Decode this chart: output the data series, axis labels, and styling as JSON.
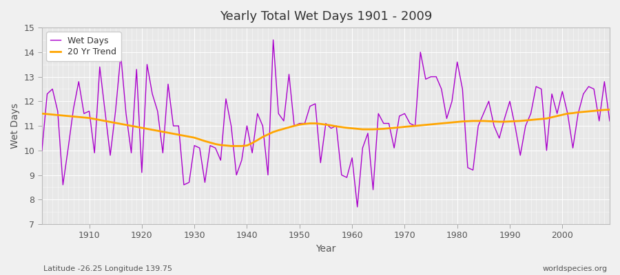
{
  "title": "Yearly Total Wet Days 1901 - 2009",
  "xlabel": "Year",
  "ylabel": "Wet Days",
  "xlim": [
    1901,
    2009
  ],
  "ylim": [
    7,
    15
  ],
  "yticks": [
    7,
    8,
    9,
    10,
    11,
    12,
    13,
    14,
    15
  ],
  "xticks": [
    1910,
    1920,
    1930,
    1940,
    1950,
    1960,
    1970,
    1980,
    1990,
    2000
  ],
  "wet_days_color": "#AA00CC",
  "trend_color": "#FFA500",
  "fig_bg_color": "#F0F0F0",
  "plot_bg_color": "#E8E8E8",
  "grid_color": "#FFFFFF",
  "text_color": "#555555",
  "bottom_left_text": "Latitude -26.25 Longitude 139.75",
  "bottom_right_text": "worldspecies.org",
  "years": [
    1901,
    1902,
    1903,
    1904,
    1905,
    1906,
    1907,
    1908,
    1909,
    1910,
    1911,
    1912,
    1913,
    1914,
    1915,
    1916,
    1917,
    1918,
    1919,
    1920,
    1921,
    1922,
    1923,
    1924,
    1925,
    1926,
    1927,
    1928,
    1929,
    1930,
    1931,
    1932,
    1933,
    1934,
    1935,
    1936,
    1937,
    1938,
    1939,
    1940,
    1941,
    1942,
    1943,
    1944,
    1945,
    1946,
    1947,
    1948,
    1949,
    1950,
    1951,
    1952,
    1953,
    1954,
    1955,
    1956,
    1957,
    1958,
    1959,
    1960,
    1961,
    1962,
    1963,
    1964,
    1965,
    1966,
    1967,
    1968,
    1969,
    1970,
    1971,
    1972,
    1973,
    1974,
    1975,
    1976,
    1977,
    1978,
    1979,
    1980,
    1981,
    1982,
    1983,
    1984,
    1985,
    1986,
    1987,
    1988,
    1989,
    1990,
    1991,
    1992,
    1993,
    1994,
    1995,
    1996,
    1997,
    1998,
    1999,
    2000,
    2001,
    2002,
    2003,
    2004,
    2005,
    2006,
    2007,
    2008,
    2009
  ],
  "wet_days": [
    10.0,
    12.3,
    12.5,
    11.6,
    8.6,
    10.1,
    11.7,
    12.8,
    11.5,
    11.6,
    9.9,
    13.4,
    11.6,
    9.8,
    11.6,
    13.9,
    11.5,
    9.9,
    13.3,
    9.1,
    13.5,
    12.3,
    11.6,
    9.9,
    12.7,
    11.0,
    11.0,
    8.6,
    8.7,
    10.2,
    10.1,
    8.7,
    10.2,
    10.1,
    9.6,
    12.1,
    11.0,
    9.0,
    9.6,
    11.0,
    9.9,
    11.5,
    11.0,
    9.0,
    14.5,
    11.5,
    11.2,
    13.1,
    11.0,
    11.1,
    11.1,
    11.8,
    11.9,
    9.5,
    11.1,
    10.9,
    11.0,
    9.0,
    8.9,
    9.7,
    7.7,
    10.1,
    10.7,
    8.4,
    11.5,
    11.1,
    11.1,
    10.1,
    11.4,
    11.5,
    11.1,
    11.0,
    14.0,
    12.9,
    13.0,
    13.0,
    12.5,
    11.3,
    12.0,
    13.6,
    12.5,
    9.3,
    9.2,
    11.0,
    11.5,
    12.0,
    11.0,
    10.5,
    11.3,
    12.0,
    11.0,
    9.8,
    11.0,
    11.5,
    12.6,
    12.5,
    10.0,
    12.3,
    11.5,
    12.4,
    11.5,
    10.1,
    11.5,
    12.3,
    12.6,
    12.5,
    11.2,
    12.8,
    11.2
  ],
  "trend_vals": [
    11.5,
    11.48,
    11.46,
    11.44,
    11.42,
    11.4,
    11.38,
    11.36,
    11.34,
    11.32,
    11.28,
    11.24,
    11.2,
    11.16,
    11.12,
    11.08,
    11.04,
    11.0,
    10.96,
    10.92,
    10.88,
    10.84,
    10.8,
    10.76,
    10.72,
    10.68,
    10.64,
    10.6,
    10.56,
    10.52,
    10.45,
    10.38,
    10.32,
    10.26,
    10.22,
    10.2,
    10.18,
    10.18,
    10.18,
    10.2,
    10.3,
    10.42,
    10.55,
    10.65,
    10.75,
    10.82,
    10.88,
    10.94,
    11.0,
    11.05,
    11.08,
    11.1,
    11.1,
    11.08,
    11.05,
    11.02,
    10.98,
    10.95,
    10.92,
    10.9,
    10.88,
    10.86,
    10.86,
    10.86,
    10.87,
    10.88,
    10.9,
    10.92,
    10.94,
    10.96,
    10.98,
    11.0,
    11.02,
    11.04,
    11.06,
    11.08,
    11.1,
    11.12,
    11.14,
    11.16,
    11.18,
    11.19,
    11.2,
    11.2,
    11.2,
    11.19,
    11.18,
    11.17,
    11.17,
    11.18,
    11.19,
    11.2,
    11.22,
    11.24,
    11.26,
    11.28,
    11.3,
    11.35,
    11.4,
    11.45,
    11.5,
    11.52,
    11.55,
    11.57,
    11.59,
    11.61,
    11.63,
    11.65,
    11.66
  ]
}
